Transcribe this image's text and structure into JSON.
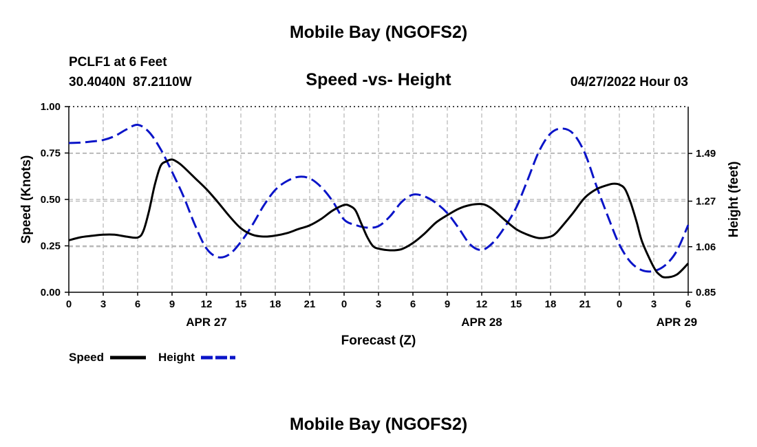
{
  "chart_data": {
    "type": "line",
    "title": "Mobile Bay (NGOFS2)",
    "subtitle": "Speed -vs- Height",
    "station": "PCLF1 at 6 Feet",
    "coords": "30.4040N  87.2110W",
    "timestamp": "04/27/2022 Hour 03",
    "xlabel": "Forecast (Z)",
    "ylabel_left": "Speed (Knots)",
    "ylabel_right": "Height (feet)",
    "footer_title": "Mobile Bay (NGOFS2)",
    "x_range": [
      0,
      54
    ],
    "x_ticks": [
      {
        "x": 0,
        "label": "0"
      },
      {
        "x": 3,
        "label": "3"
      },
      {
        "x": 6,
        "label": "6"
      },
      {
        "x": 9,
        "label": "9"
      },
      {
        "x": 12,
        "label": "12"
      },
      {
        "x": 15,
        "label": "15"
      },
      {
        "x": 18,
        "label": "18"
      },
      {
        "x": 21,
        "label": "21"
      },
      {
        "x": 24,
        "label": "0"
      },
      {
        "x": 27,
        "label": "3"
      },
      {
        "x": 30,
        "label": "6"
      },
      {
        "x": 33,
        "label": "9"
      },
      {
        "x": 36,
        "label": "12"
      },
      {
        "x": 39,
        "label": "15"
      },
      {
        "x": 42,
        "label": "18"
      },
      {
        "x": 45,
        "label": "21"
      },
      {
        "x": 48,
        "label": "0"
      },
      {
        "x": 51,
        "label": "3"
      },
      {
        "x": 54,
        "label": "6"
      }
    ],
    "date_labels": [
      {
        "x": 12,
        "label": "APR 27"
      },
      {
        "x": 36,
        "label": "APR 28"
      },
      {
        "x": 53,
        "label": "APR 29"
      }
    ],
    "y_left_range": [
      0,
      1
    ],
    "y_left_ticks": [
      {
        "v": 0.0,
        "label": "0.00"
      },
      {
        "v": 0.25,
        "label": "0.25"
      },
      {
        "v": 0.5,
        "label": "0.50"
      },
      {
        "v": 0.75,
        "label": "0.75"
      },
      {
        "v": 1.0,
        "label": "1.00"
      }
    ],
    "y_right_range": [
      0.85,
      1.706
    ],
    "y_right_ticks": [
      {
        "v": 0.85,
        "label": "0.85"
      },
      {
        "v": 1.06,
        "label": "1.06"
      },
      {
        "v": 1.27,
        "label": "1.27"
      },
      {
        "v": 1.49,
        "label": "1.49"
      }
    ],
    "grid": true,
    "series": [
      {
        "name": "Speed",
        "axis": "left",
        "color": "#000000",
        "dash": "solid",
        "x": [
          0,
          1,
          2,
          3,
          4,
          5,
          6,
          6.5,
          7,
          7.5,
          8,
          8.5,
          9,
          9.5,
          10,
          11,
          12,
          13,
          14,
          15,
          16,
          17,
          18,
          19,
          20,
          21,
          22,
          23,
          24,
          24.5,
          25,
          25.5,
          26,
          26.5,
          27,
          28,
          29,
          30,
          31,
          32,
          33,
          34,
          35,
          36,
          36.5,
          37,
          38,
          39,
          40,
          41,
          42,
          42.5,
          43,
          44,
          45,
          46,
          47,
          47.5,
          48,
          48.5,
          49,
          49.5,
          50,
          51,
          51.5,
          52,
          53,
          54
        ],
        "values": [
          0.28,
          0.296,
          0.304,
          0.31,
          0.31,
          0.3,
          0.295,
          0.33,
          0.44,
          0.58,
          0.68,
          0.705,
          0.715,
          0.7,
          0.675,
          0.615,
          0.555,
          0.485,
          0.41,
          0.345,
          0.31,
          0.3,
          0.305,
          0.318,
          0.34,
          0.36,
          0.395,
          0.44,
          0.47,
          0.465,
          0.44,
          0.37,
          0.3,
          0.25,
          0.235,
          0.226,
          0.232,
          0.265,
          0.315,
          0.375,
          0.415,
          0.45,
          0.47,
          0.475,
          0.465,
          0.445,
          0.39,
          0.34,
          0.31,
          0.292,
          0.3,
          0.32,
          0.355,
          0.43,
          0.51,
          0.555,
          0.578,
          0.585,
          0.58,
          0.555,
          0.48,
          0.38,
          0.27,
          0.135,
          0.095,
          0.08,
          0.095,
          0.155
        ]
      },
      {
        "name": "Height",
        "axis": "right",
        "color": "#0a14c8",
        "dash": "dashed",
        "x": [
          0,
          1,
          2,
          3,
          4,
          5,
          6,
          7,
          8,
          9,
          10,
          11,
          12,
          13,
          14,
          15,
          16,
          17,
          18,
          19,
          20,
          21,
          22,
          23,
          24,
          25,
          26,
          27,
          28,
          29,
          30,
          31,
          32,
          33,
          34,
          35,
          36,
          37,
          38,
          39,
          40,
          41,
          42,
          43,
          44,
          45,
          46,
          47,
          48,
          49,
          50,
          51,
          52,
          53,
          54
        ],
        "values": [
          1.538,
          1.54,
          1.545,
          1.552,
          1.57,
          1.6,
          1.622,
          1.588,
          1.51,
          1.405,
          1.292,
          1.16,
          1.052,
          1.012,
          1.025,
          1.082,
          1.16,
          1.25,
          1.322,
          1.362,
          1.382,
          1.375,
          1.335,
          1.27,
          1.185,
          1.16,
          1.148,
          1.155,
          1.2,
          1.265,
          1.3,
          1.292,
          1.262,
          1.215,
          1.145,
          1.07,
          1.045,
          1.08,
          1.15,
          1.24,
          1.368,
          1.5,
          1.582,
          1.605,
          1.58,
          1.49,
          1.34,
          1.2,
          1.07,
          0.988,
          0.951,
          0.948,
          0.975,
          1.04,
          1.16
        ]
      }
    ]
  }
}
